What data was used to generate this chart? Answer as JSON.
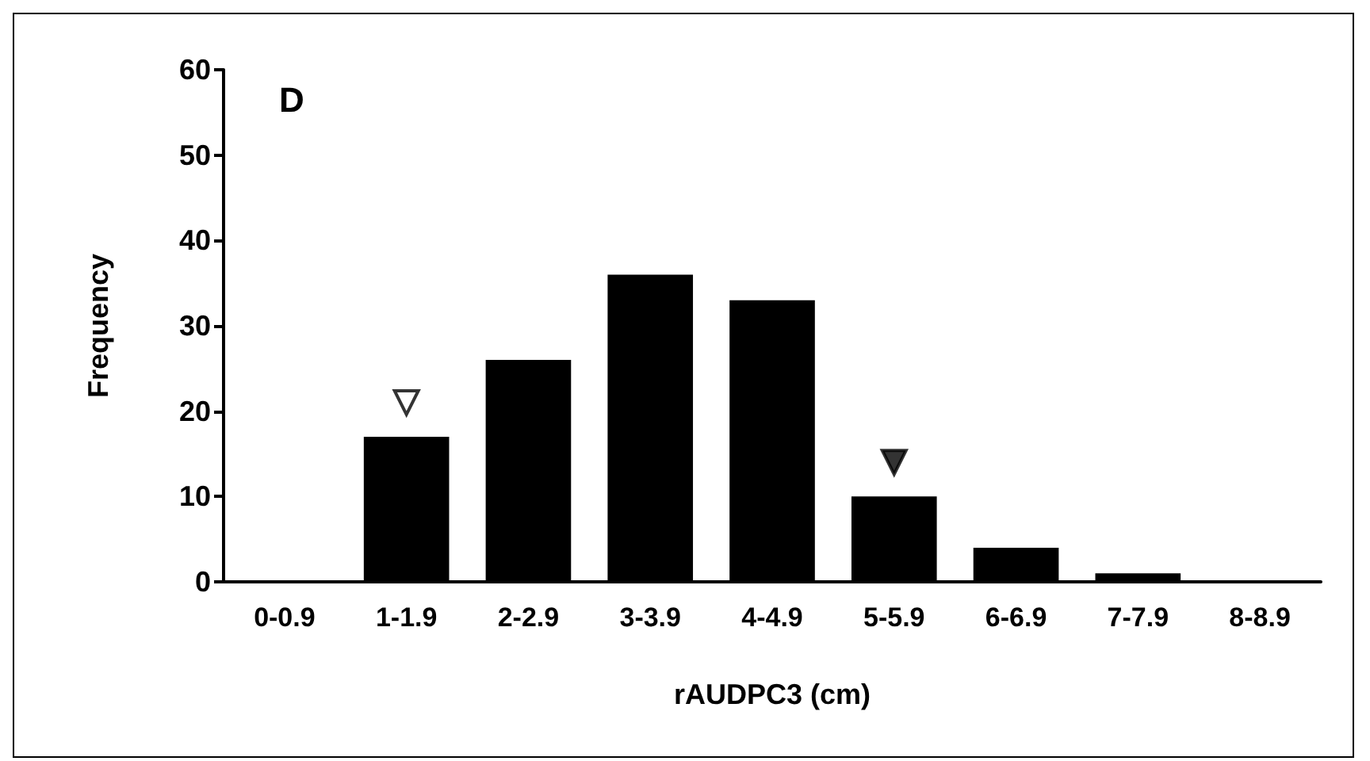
{
  "chart_data": {
    "type": "bar",
    "title": "D",
    "xlabel": "rAUDPC3 (cm)",
    "ylabel": "Frequency",
    "categories": [
      "0-0.9",
      "1-1.9",
      "2-2.9",
      "3-3.9",
      "4-4.9",
      "5-5.9",
      "6-6.9",
      "7-7.9",
      "8-8.9"
    ],
    "series": [
      {
        "color": "#000000",
        "values": [
          0,
          17,
          26,
          36,
          33,
          10,
          4,
          1,
          0
        ]
      },
      {
        "type": "scatter",
        "marker": "triangle",
        "color": "#ffffff",
        "x": [
          "1-1.9"
        ],
        "values": [
          21
        ]
      },
      {
        "type": "scatter",
        "marker": "triangle",
        "color": "#000000",
        "x": [
          "5-5.9"
        ],
        "values": [
          14
        ]
      }
    ],
    "ylim": [
      0,
      60
    ],
    "yticks": [
      0,
      10,
      20,
      30,
      40,
      50,
      60
    ],
    "grid": false
  }
}
